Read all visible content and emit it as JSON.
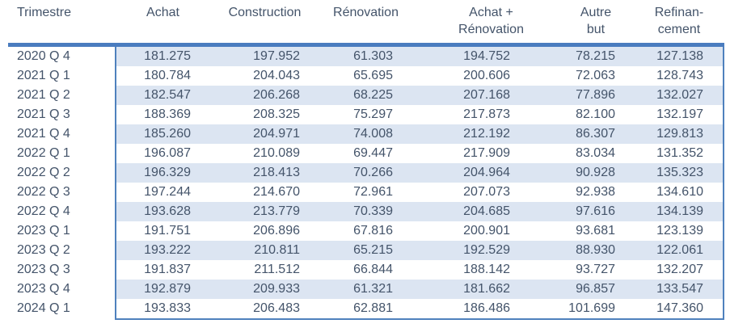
{
  "table": {
    "column_keys": [
      "trimestre",
      "achat",
      "construction",
      "renovation",
      "achat-plus-renovation",
      "autre-but",
      "refinancement"
    ],
    "headers": [
      "Trimestre",
      "Achat",
      "Construction",
      "Rénovation",
      "Achat +\nRénovation",
      "Autre\nbut",
      "Refinan-\ncement"
    ],
    "rows": [
      [
        "2020 Q 4",
        "181.275",
        "197.952",
        "61.303",
        "194.752",
        "78.215",
        "127.138"
      ],
      [
        "2021 Q 1",
        "180.784",
        "204.043",
        "65.695",
        "200.606",
        "72.063",
        "128.743"
      ],
      [
        "2021 Q 2",
        "182.547",
        "206.268",
        "68.225",
        "207.168",
        "77.896",
        "132.027"
      ],
      [
        "2021 Q 3",
        "188.369",
        "208.325",
        "75.297",
        "217.873",
        "82.100",
        "132.197"
      ],
      [
        "2021 Q 4",
        "185.260",
        "204.971",
        "74.008",
        "212.192",
        "86.307",
        "129.813"
      ],
      [
        "2022 Q 1",
        "196.087",
        "210.089",
        "69.447",
        "217.909",
        "83.034",
        "131.352"
      ],
      [
        "2022 Q 2",
        "196.329",
        "218.413",
        "70.266",
        "204.964",
        "90.928",
        "135.323"
      ],
      [
        "2022 Q 3",
        "197.244",
        "214.670",
        "72.961",
        "207.073",
        "92.938",
        "134.610"
      ],
      [
        "2022 Q 4",
        "193.628",
        "213.779",
        "70.339",
        "204.685",
        "97.616",
        "134.139"
      ],
      [
        "2023 Q 1",
        "191.751",
        "206.896",
        "67.816",
        "200.901",
        "93.681",
        "123.139"
      ],
      [
        "2023 Q 2",
        "193.222",
        "210.811",
        "65.215",
        "192.529",
        "88.930",
        "122.061"
      ],
      [
        "2023 Q 3",
        "191.837",
        "211.512",
        "66.844",
        "188.142",
        "93.727",
        "132.207"
      ],
      [
        "2023 Q 4",
        "192.879",
        "209.933",
        "61.321",
        "181.662",
        "96.857",
        "133.547"
      ],
      [
        "2024 Q 1",
        "193.833",
        "206.483",
        "62.881",
        "186.486",
        "101.699",
        "147.360"
      ]
    ]
  },
  "chart_data": {
    "type": "table",
    "title": "",
    "columns": [
      "Trimestre",
      "Achat",
      "Construction",
      "Rénovation",
      "Achat + Rénovation",
      "Autre but",
      "Refinancement"
    ],
    "rows": [
      [
        "2020 Q 4",
        "181.275",
        "197.952",
        "61.303",
        "194.752",
        "78.215",
        "127.138"
      ],
      [
        "2021 Q 1",
        "180.784",
        "204.043",
        "65.695",
        "200.606",
        "72.063",
        "128.743"
      ],
      [
        "2021 Q 2",
        "182.547",
        "206.268",
        "68.225",
        "207.168",
        "77.896",
        "132.027"
      ],
      [
        "2021 Q 3",
        "188.369",
        "208.325",
        "75.297",
        "217.873",
        "82.100",
        "132.197"
      ],
      [
        "2021 Q 4",
        "185.260",
        "204.971",
        "74.008",
        "212.192",
        "86.307",
        "129.813"
      ],
      [
        "2022 Q 1",
        "196.087",
        "210.089",
        "69.447",
        "217.909",
        "83.034",
        "131.352"
      ],
      [
        "2022 Q 2",
        "196.329",
        "218.413",
        "70.266",
        "204.964",
        "90.928",
        "135.323"
      ],
      [
        "2022 Q 3",
        "197.244",
        "214.670",
        "72.961",
        "207.073",
        "92.938",
        "134.610"
      ],
      [
        "2022 Q 4",
        "193.628",
        "213.779",
        "70.339",
        "204.685",
        "97.616",
        "134.139"
      ],
      [
        "2023 Q 1",
        "191.751",
        "206.896",
        "67.816",
        "200.901",
        "93.681",
        "123.139"
      ],
      [
        "2023 Q 2",
        "193.222",
        "210.811",
        "65.215",
        "192.529",
        "88.930",
        "122.061"
      ],
      [
        "2023 Q 3",
        "191.837",
        "211.512",
        "66.844",
        "188.142",
        "93.727",
        "132.207"
      ],
      [
        "2023 Q 4",
        "192.879",
        "209.933",
        "61.321",
        "181.662",
        "96.857",
        "133.547"
      ],
      [
        "2024 Q 1",
        "193.833",
        "206.483",
        "62.881",
        "186.486",
        "101.699",
        "147.360"
      ]
    ]
  },
  "colors": {
    "accent_border": "#4F81BD",
    "header_rule": "#4A7CBF",
    "row_shading": "#DCE5F2",
    "text": "#44546A"
  }
}
